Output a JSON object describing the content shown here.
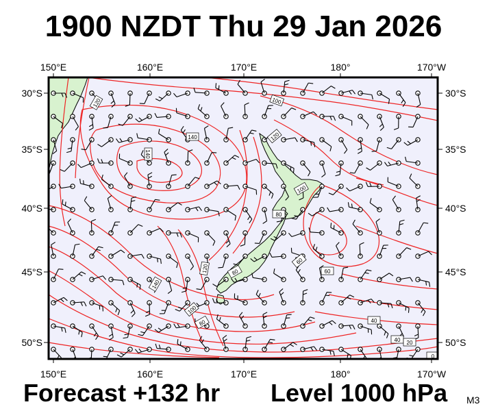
{
  "header": {
    "title": "1900 NZDT Thu 29 Jan 2026"
  },
  "footer": {
    "forecast": "Forecast +132 hr",
    "level": "Level 1000 hPa",
    "model": "M3"
  },
  "map": {
    "lon_labels": [
      "150°E",
      "160°E",
      "170°E",
      "180°",
      "170°W"
    ],
    "lat_labels": [
      "30°S",
      "35°S",
      "40°S",
      "45°S",
      "50°S"
    ],
    "contour_labels": [
      "120",
      "100",
      "120",
      "140",
      "140",
      "100",
      "80",
      "60",
      "40",
      "80",
      "120",
      "140",
      "100",
      "80",
      "60",
      "40",
      "20",
      "0"
    ],
    "colors": {
      "ocean": "#f0f0fc",
      "land": "#d8f2cf",
      "contour": "#ee2222",
      "wind": "#000000",
      "frame": "#000000"
    }
  }
}
